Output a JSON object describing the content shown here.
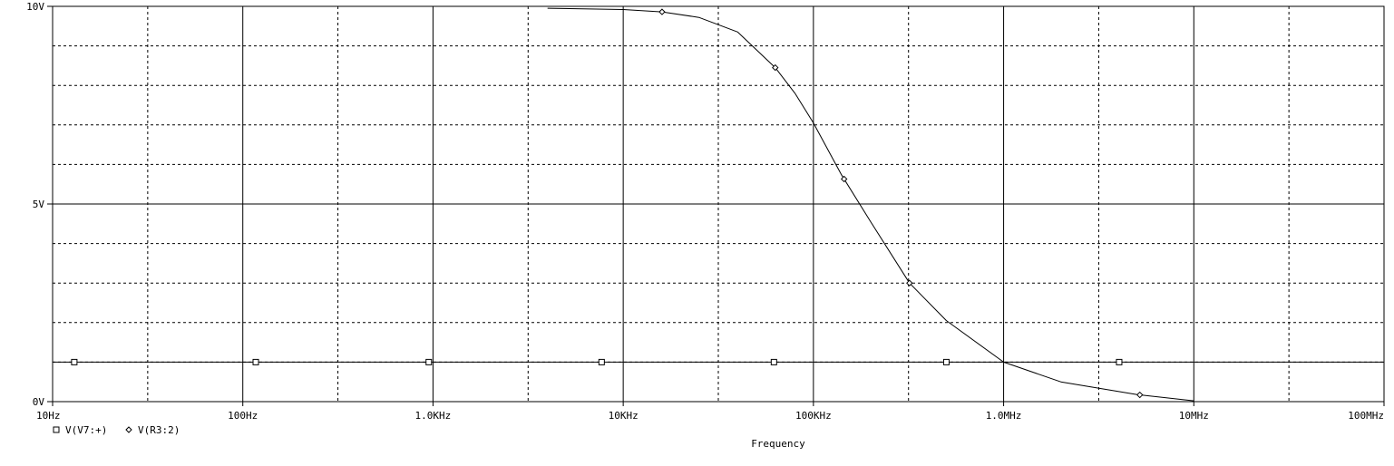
{
  "chart_data": {
    "type": "line",
    "xscale": "log",
    "xlabel": "Frequency",
    "ylabel": "",
    "xlim": [
      10,
      100000000
    ],
    "ylim": [
      0,
      10
    ],
    "grid": true,
    "legend_position": "bottom-left",
    "x_tick_values": [
      10,
      100,
      1000,
      10000,
      100000,
      1000000,
      10000000,
      100000000
    ],
    "x_tick_labels": [
      "10Hz",
      "100Hz",
      "1.0KHz",
      "10KHz",
      "100KHz",
      "1.0MHz",
      "10MHz",
      "100MHz"
    ],
    "y_tick_values": [
      0,
      5,
      10
    ],
    "y_tick_labels": [
      "0V",
      "5V",
      "10V"
    ],
    "series": [
      {
        "name": "V(V7:+)",
        "marker": "square",
        "color": "#000000",
        "x": [
          10,
          100000000
        ],
        "y": [
          1,
          1
        ],
        "marker_x": [
          13,
          117,
          950,
          7700,
          62000,
          500000,
          4050000
        ]
      },
      {
        "name": "V(R3:2)",
        "marker": "diamond",
        "color": "#000000",
        "x": [
          4000,
          10000,
          16000,
          25000,
          40000,
          63000,
          80000,
          100000,
          140000,
          200000,
          320000,
          500000,
          1000000,
          2000000,
          5000000,
          10000000
        ],
        "y": [
          9.95,
          9.92,
          9.86,
          9.72,
          9.35,
          8.45,
          7.8,
          7.05,
          5.75,
          4.55,
          3.0,
          2.05,
          1.0,
          0.5,
          0.18,
          0.02
        ],
        "marker_x": [
          16000,
          63000,
          145000,
          320000,
          5200000
        ]
      }
    ]
  }
}
